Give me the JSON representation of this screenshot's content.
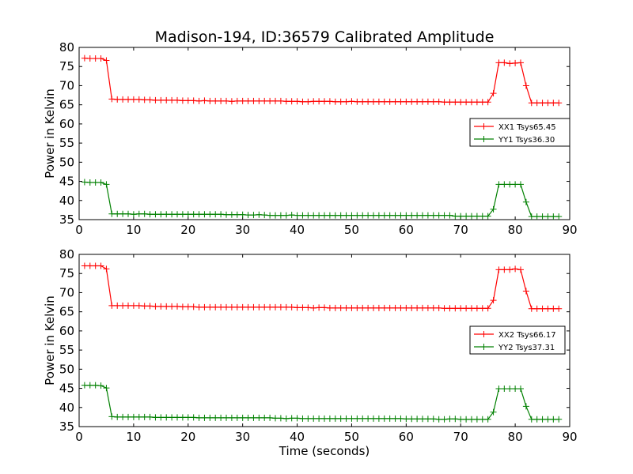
{
  "title": "Madison-194, ID:36579 Calibrated Amplitude",
  "chart_data": [
    {
      "type": "line",
      "xlabel": "",
      "ylabel": "Power in Kelvin",
      "xlim": [
        0,
        90
      ],
      "ylim": [
        35,
        80
      ],
      "xticks": [
        "0",
        "10",
        "20",
        "30",
        "40",
        "50",
        "60",
        "70",
        "80",
        "90"
      ],
      "yticks": [
        "35",
        "40",
        "45",
        "50",
        "55",
        "60",
        "65",
        "70",
        "75",
        "80"
      ],
      "legend_position": "center-right",
      "grid": false,
      "x": [
        1,
        2,
        3,
        4,
        5,
        6,
        7,
        8,
        9,
        10,
        11,
        12,
        13,
        14,
        15,
        16,
        17,
        18,
        19,
        20,
        21,
        22,
        23,
        24,
        25,
        26,
        27,
        28,
        29,
        30,
        31,
        32,
        33,
        34,
        35,
        36,
        37,
        38,
        39,
        40,
        41,
        42,
        43,
        44,
        45,
        46,
        47,
        48,
        49,
        50,
        51,
        52,
        53,
        54,
        55,
        56,
        57,
        58,
        59,
        60,
        61,
        62,
        63,
        64,
        65,
        66,
        67,
        68,
        69,
        70,
        71,
        72,
        73,
        74,
        75,
        76,
        77,
        78,
        79,
        80,
        81,
        82,
        83,
        84,
        85,
        86,
        87,
        88
      ],
      "series": [
        {
          "name": "XX1 Tsys65.45",
          "color": "#ff0000",
          "values": [
            77.2,
            77.1,
            77.1,
            77.1,
            76.6,
            66.5,
            66.4,
            66.4,
            66.4,
            66.4,
            66.4,
            66.3,
            66.3,
            66.2,
            66.2,
            66.2,
            66.2,
            66.2,
            66.1,
            66.1,
            66.1,
            66.0,
            66.1,
            66.0,
            66.0,
            66.0,
            66.0,
            65.9,
            66.0,
            66.0,
            66.0,
            66.0,
            66.0,
            66.0,
            66.0,
            66.0,
            66.0,
            65.9,
            65.9,
            65.9,
            65.8,
            65.8,
            65.9,
            65.9,
            65.9,
            65.9,
            65.8,
            65.8,
            65.8,
            65.9,
            65.8,
            65.8,
            65.8,
            65.8,
            65.8,
            65.8,
            65.8,
            65.8,
            65.8,
            65.8,
            65.8,
            65.8,
            65.8,
            65.8,
            65.8,
            65.8,
            65.7,
            65.7,
            65.7,
            65.7,
            65.7,
            65.7,
            65.7,
            65.7,
            65.7,
            68.0,
            76.0,
            76.0,
            75.8,
            75.9,
            76.0,
            70.0,
            65.5,
            65.5,
            65.5,
            65.5,
            65.5,
            65.5
          ]
        },
        {
          "name": "YY1 Tsys36.30",
          "color": "#008000",
          "values": [
            44.8,
            44.7,
            44.7,
            44.7,
            44.2,
            36.5,
            36.5,
            36.5,
            36.5,
            36.4,
            36.5,
            36.5,
            36.4,
            36.4,
            36.4,
            36.4,
            36.4,
            36.4,
            36.4,
            36.4,
            36.4,
            36.4,
            36.4,
            36.4,
            36.4,
            36.4,
            36.3,
            36.3,
            36.3,
            36.3,
            36.2,
            36.2,
            36.3,
            36.2,
            36.1,
            36.1,
            36.1,
            36.1,
            36.2,
            36.1,
            36.1,
            36.1,
            36.1,
            36.1,
            36.1,
            36.1,
            36.1,
            36.1,
            36.1,
            36.1,
            36.1,
            36.1,
            36.1,
            36.1,
            36.1,
            36.1,
            36.1,
            36.1,
            36.1,
            36.1,
            36.1,
            36.1,
            36.1,
            36.1,
            36.1,
            36.1,
            36.1,
            36.1,
            35.9,
            35.9,
            35.9,
            35.9,
            35.9,
            35.9,
            35.9,
            37.7,
            44.2,
            44.2,
            44.2,
            44.2,
            44.2,
            39.6,
            35.8,
            35.8,
            35.8,
            35.8,
            35.8,
            35.8
          ]
        }
      ]
    },
    {
      "type": "line",
      "xlabel": "Time (seconds)",
      "ylabel": "Power in Kelvin",
      "xlim": [
        0,
        90
      ],
      "ylim": [
        35,
        80
      ],
      "xticks": [
        "0",
        "10",
        "20",
        "30",
        "40",
        "50",
        "60",
        "70",
        "80",
        "90"
      ],
      "yticks": [
        "35",
        "40",
        "45",
        "50",
        "55",
        "60",
        "65",
        "70",
        "75",
        "80"
      ],
      "legend_position": "center-right",
      "grid": false,
      "x": [
        1,
        2,
        3,
        4,
        5,
        6,
        7,
        8,
        9,
        10,
        11,
        12,
        13,
        14,
        15,
        16,
        17,
        18,
        19,
        20,
        21,
        22,
        23,
        24,
        25,
        26,
        27,
        28,
        29,
        30,
        31,
        32,
        33,
        34,
        35,
        36,
        37,
        38,
        39,
        40,
        41,
        42,
        43,
        44,
        45,
        46,
        47,
        48,
        49,
        50,
        51,
        52,
        53,
        54,
        55,
        56,
        57,
        58,
        59,
        60,
        61,
        62,
        63,
        64,
        65,
        66,
        67,
        68,
        69,
        70,
        71,
        72,
        73,
        74,
        75,
        76,
        77,
        78,
        79,
        80,
        81,
        82,
        83,
        84,
        85,
        86,
        87,
        88
      ],
      "series": [
        {
          "name": "XX2 Tsys66.17",
          "color": "#ff0000",
          "values": [
            77.0,
            77.0,
            77.0,
            77.0,
            76.2,
            66.6,
            66.6,
            66.6,
            66.6,
            66.6,
            66.6,
            66.5,
            66.5,
            66.4,
            66.4,
            66.4,
            66.4,
            66.4,
            66.3,
            66.3,
            66.3,
            66.2,
            66.2,
            66.2,
            66.2,
            66.2,
            66.2,
            66.2,
            66.2,
            66.2,
            66.2,
            66.2,
            66.2,
            66.2,
            66.2,
            66.2,
            66.2,
            66.2,
            66.2,
            66.1,
            66.1,
            66.1,
            66.0,
            66.1,
            66.1,
            66.0,
            66.0,
            66.0,
            66.0,
            66.0,
            66.0,
            66.0,
            66.0,
            66.0,
            66.0,
            66.0,
            66.0,
            66.0,
            66.0,
            66.0,
            66.0,
            66.0,
            66.0,
            66.0,
            66.0,
            66.0,
            65.9,
            65.9,
            65.9,
            65.9,
            65.9,
            65.9,
            65.9,
            65.9,
            65.9,
            68.0,
            76.0,
            76.0,
            76.0,
            76.2,
            76.0,
            70.4,
            65.8,
            65.8,
            65.8,
            65.8,
            65.8,
            65.8
          ]
        },
        {
          "name": "YY2 Tsys37.31",
          "color": "#008000",
          "values": [
            45.8,
            45.8,
            45.8,
            45.7,
            45.1,
            37.6,
            37.5,
            37.5,
            37.5,
            37.5,
            37.5,
            37.5,
            37.5,
            37.4,
            37.4,
            37.4,
            37.4,
            37.4,
            37.4,
            37.4,
            37.4,
            37.3,
            37.3,
            37.3,
            37.3,
            37.3,
            37.3,
            37.3,
            37.3,
            37.3,
            37.3,
            37.3,
            37.3,
            37.3,
            37.3,
            37.2,
            37.2,
            37.1,
            37.2,
            37.2,
            37.1,
            37.1,
            37.1,
            37.1,
            37.1,
            37.1,
            37.1,
            37.1,
            37.1,
            37.1,
            37.1,
            37.1,
            37.1,
            37.1,
            37.1,
            37.1,
            37.1,
            37.1,
            37.1,
            37.0,
            37.0,
            37.0,
            37.0,
            37.0,
            37.0,
            36.9,
            36.9,
            37.0,
            37.0,
            36.9,
            36.9,
            36.9,
            36.9,
            36.9,
            36.9,
            38.8,
            44.9,
            44.9,
            44.9,
            44.9,
            44.9,
            40.3,
            36.9,
            36.9,
            36.9,
            36.9,
            36.9,
            36.9
          ]
        }
      ]
    }
  ]
}
